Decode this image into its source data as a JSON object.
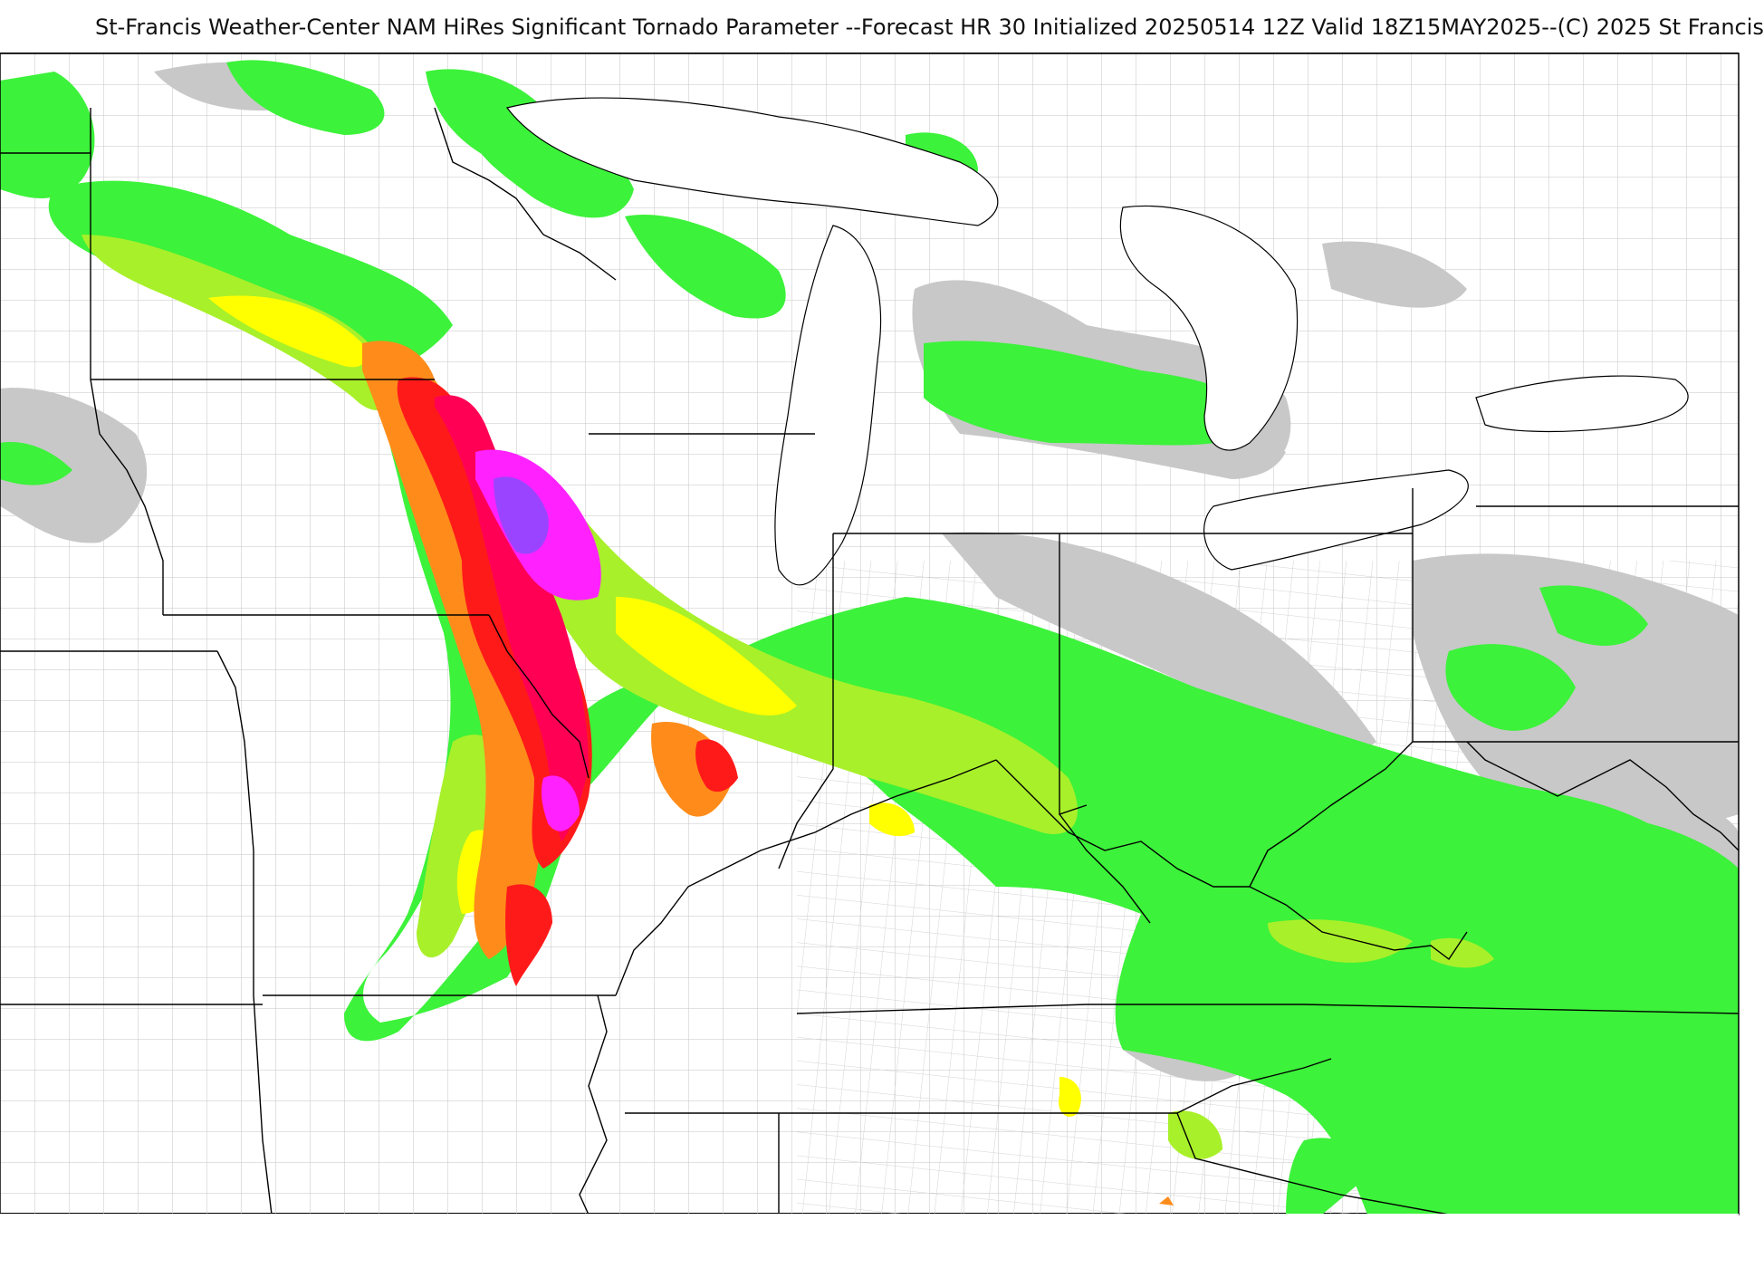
{
  "title": "St-Francis Weather-Center NAM HiRes Significant Tornado Parameter --Forecast HR 30 Initialized 20250514 12Z Valid 18Z15MAY2025--(C) 2025 St Francis",
  "colors": {
    "gray": "#c8c8c8",
    "light_green": "#3cf23a",
    "green": "#22e020",
    "mid_green": "#5adf2a",
    "yellow_green": "#a8f02a",
    "lime": "#ccf530",
    "yellow": "#ffff00",
    "orange": "#ff8c1a",
    "red": "#ff1a1a",
    "crimson": "#ff0055",
    "magenta": "#ff22ff",
    "purple": "#9a44ff",
    "lake": "#ffffff",
    "borders": "#000000",
    "counties": "#bdbdbd"
  }
}
